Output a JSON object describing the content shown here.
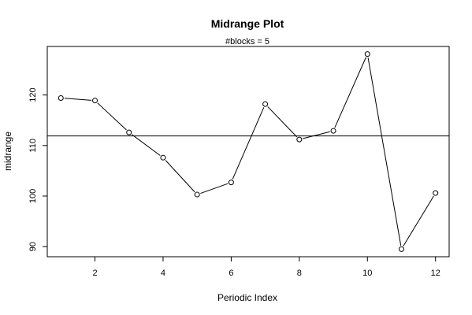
{
  "chart_data": {
    "type": "line",
    "title": "Midrange Plot",
    "subtitle": "#blocks =  5",
    "xlabel": "Periodic Index",
    "ylabel": "midrange",
    "x": [
      1,
      2,
      3,
      4,
      5,
      6,
      7,
      8,
      9,
      10,
      11,
      12
    ],
    "series": [
      {
        "values": [
          119.4,
          118.9,
          112.6,
          107.6,
          100.3,
          102.7,
          118.2,
          111.2,
          112.9,
          128.1,
          89.5,
          100.6
        ]
      }
    ],
    "reference_line": 111.9,
    "xlim": [
      0.6,
      12.4
    ],
    "ylim": [
      88,
      129.6
    ],
    "xticks": [
      2,
      4,
      6,
      8,
      10,
      12
    ],
    "yticks": [
      90,
      100,
      110,
      120
    ],
    "markers": "open-circle",
    "grid": false,
    "colors": {
      "line": "#000000",
      "reference": "#000000",
      "background": "#ffffff"
    }
  }
}
